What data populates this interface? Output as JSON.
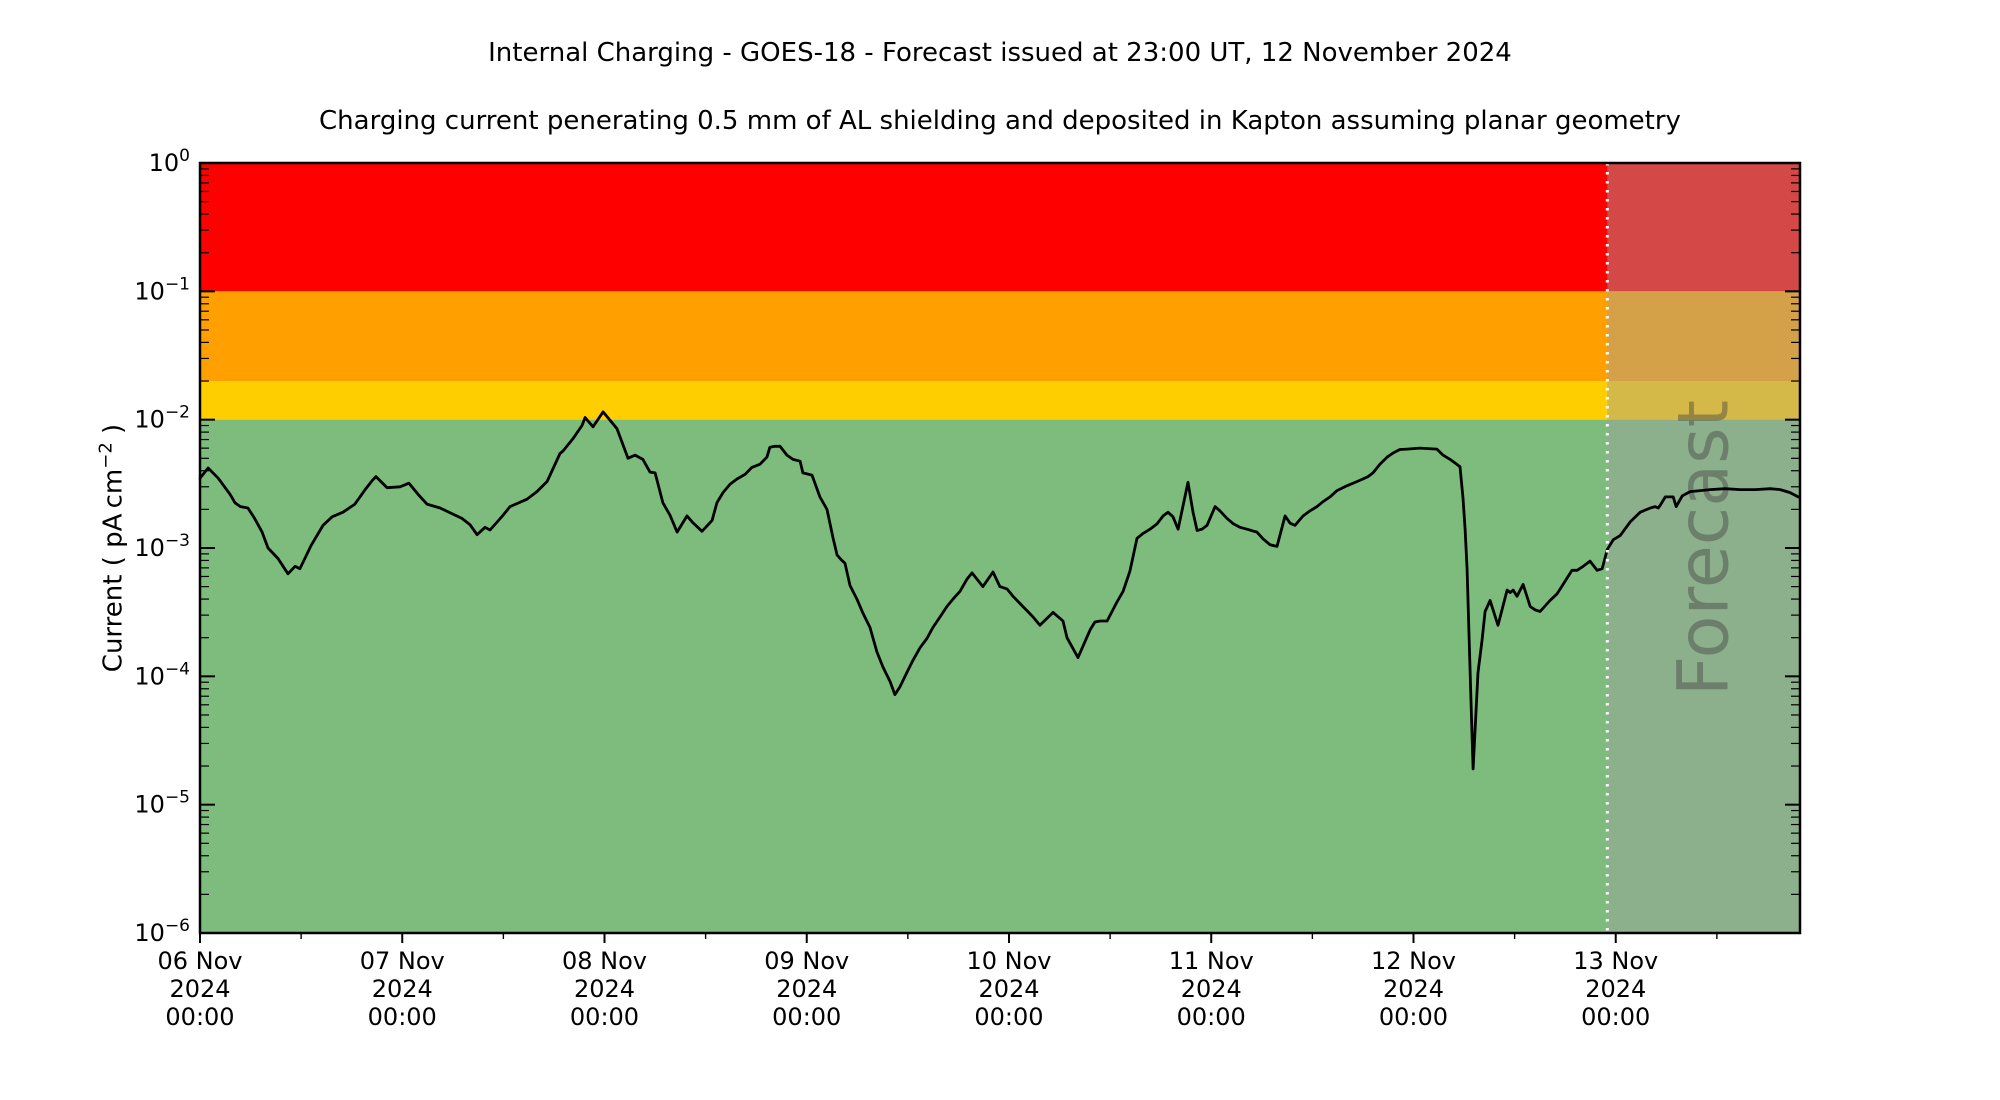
{
  "title": "Internal Charging - GOES-18 - Forecast issued at 23:00 UT, 12 November 2024",
  "subtitle": "Charging current penerating 0.5 mm of AL shielding and deposited in Kapton assuming planar geometry",
  "chart_data": {
    "type": "line",
    "y_scale": "log",
    "ylim": [
      1e-06,
      1
    ],
    "ylabel": {
      "prefix": "Current ( pA cm",
      "sup": "−2",
      "suffix": " )"
    },
    "x_range_days": [
      0,
      7.9111
    ],
    "x_minor_step_days": 0.5,
    "x_ticks": [
      {
        "t": 0,
        "line1": "06 Nov",
        "line2": "2024",
        "line3": "00:00"
      },
      {
        "t": 1,
        "line1": "07 Nov",
        "line2": "2024",
        "line3": "00:00"
      },
      {
        "t": 2,
        "line1": "08 Nov",
        "line2": "2024",
        "line3": "00:00"
      },
      {
        "t": 3,
        "line1": "09 Nov",
        "line2": "2024",
        "line3": "00:00"
      },
      {
        "t": 4,
        "line1": "10 Nov",
        "line2": "2024",
        "line3": "00:00"
      },
      {
        "t": 5,
        "line1": "11 Nov",
        "line2": "2024",
        "line3": "00:00"
      },
      {
        "t": 6,
        "line1": "12 Nov",
        "line2": "2024",
        "line3": "00:00"
      },
      {
        "t": 7,
        "line1": "13 Nov",
        "line2": "2024",
        "line3": "00:00"
      }
    ],
    "y_ticks": [
      {
        "base": "10",
        "exp": "0"
      },
      {
        "base": "10",
        "exp": "−1"
      },
      {
        "base": "10",
        "exp": "−2"
      },
      {
        "base": "10",
        "exp": "−3"
      },
      {
        "base": "10",
        "exp": "−4"
      },
      {
        "base": "10",
        "exp": "−5"
      },
      {
        "base": "10",
        "exp": "−6"
      }
    ],
    "bands": [
      {
        "name": "red",
        "from": 0.1,
        "to": 1,
        "color": "#ff0000"
      },
      {
        "name": "orange",
        "from": 0.02,
        "to": 0.1,
        "color": "#ffa000"
      },
      {
        "name": "yellow",
        "from": 0.01,
        "to": 0.02,
        "color": "#ffce00"
      },
      {
        "name": "green",
        "from": 1e-06,
        "to": 0.01,
        "color": "#7dbc7d"
      }
    ],
    "forecast": {
      "start_days": 6.9583,
      "label": "Forecast",
      "overlay_color": "#a0a0a0",
      "overlay_alpha": 0.45,
      "divider_color": "#ffffff",
      "label_color": "#3f3f3f",
      "label_alpha": 0.42
    },
    "series": [
      {
        "name": "charging-current",
        "color": "#000000",
        "points": [
          [
            0,
            0.0035
          ],
          [
            0.04,
            0.0042
          ],
          [
            0.09,
            0.0035
          ],
          [
            0.15,
            0.0026
          ],
          [
            0.173,
            0.00225
          ],
          [
            0.2,
            0.0021
          ],
          [
            0.237,
            0.00205
          ],
          [
            0.27,
            0.0017
          ],
          [
            0.307,
            0.00133
          ],
          [
            0.336,
            0.001
          ],
          [
            0.385,
            0.00083
          ],
          [
            0.435,
            0.00063
          ],
          [
            0.47,
            0.00072
          ],
          [
            0.494,
            0.00069
          ],
          [
            0.55,
            0.00105
          ],
          [
            0.608,
            0.0015
          ],
          [
            0.653,
            0.00175
          ],
          [
            0.707,
            0.0019
          ],
          [
            0.766,
            0.0022
          ],
          [
            0.82,
            0.0029
          ],
          [
            0.855,
            0.0034
          ],
          [
            0.87,
            0.0036
          ],
          [
            0.925,
            0.00295
          ],
          [
            0.989,
            0.003
          ],
          [
            1.033,
            0.0032
          ],
          [
            1.08,
            0.0026
          ],
          [
            1.122,
            0.0022
          ],
          [
            1.187,
            0.00205
          ],
          [
            1.295,
            0.0017
          ],
          [
            1.335,
            0.00152
          ],
          [
            1.37,
            0.00127
          ],
          [
            1.409,
            0.00145
          ],
          [
            1.434,
            0.00138
          ],
          [
            1.493,
            0.00176
          ],
          [
            1.533,
            0.0021
          ],
          [
            1.617,
            0.0024
          ],
          [
            1.666,
            0.00275
          ],
          [
            1.716,
            0.0033
          ],
          [
            1.78,
            0.00545
          ],
          [
            1.795,
            0.0057
          ],
          [
            1.844,
            0.0071
          ],
          [
            1.889,
            0.009
          ],
          [
            1.904,
            0.0104
          ],
          [
            1.943,
            0.0088
          ],
          [
            1.993,
            0.0115
          ],
          [
            2.062,
            0.0085
          ],
          [
            2.116,
            0.005
          ],
          [
            2.151,
            0.0053
          ],
          [
            2.19,
            0.0049
          ],
          [
            2.225,
            0.0039
          ],
          [
            2.25,
            0.00385
          ],
          [
            2.289,
            0.00225
          ],
          [
            2.324,
            0.0018
          ],
          [
            2.359,
            0.00133
          ],
          [
            2.408,
            0.00178
          ],
          [
            2.438,
            0.00157
          ],
          [
            2.482,
            0.00135
          ],
          [
            2.532,
            0.00164
          ],
          [
            2.556,
            0.00225
          ],
          [
            2.586,
            0.0027
          ],
          [
            2.621,
            0.00315
          ],
          [
            2.655,
            0.00345
          ],
          [
            2.695,
            0.00375
          ],
          [
            2.729,
            0.00425
          ],
          [
            2.769,
            0.0045
          ],
          [
            2.803,
            0.0051
          ],
          [
            2.818,
            0.0061
          ],
          [
            2.843,
            0.0062
          ],
          [
            2.868,
            0.0062
          ],
          [
            2.902,
            0.0053
          ],
          [
            2.932,
            0.0049
          ],
          [
            2.967,
            0.00475
          ],
          [
            2.981,
            0.00385
          ],
          [
            3.026,
            0.0037
          ],
          [
            3.065,
            0.0025
          ],
          [
            3.1,
            0.002
          ],
          [
            3.13,
            0.0012
          ],
          [
            3.15,
            0.00088
          ],
          [
            3.174,
            0.0008
          ],
          [
            3.189,
            0.00076
          ],
          [
            3.214,
            0.00051
          ],
          [
            3.248,
            0.0004
          ],
          [
            3.278,
            0.00031
          ],
          [
            3.313,
            0.00024
          ],
          [
            3.347,
            0.000155
          ],
          [
            3.377,
            0.000118
          ],
          [
            3.412,
            9.1e-05
          ],
          [
            3.436,
            7.2e-05
          ],
          [
            3.461,
            8.3e-05
          ],
          [
            3.496,
            0.000108
          ],
          [
            3.525,
            0.000133
          ],
          [
            3.56,
            0.000167
          ],
          [
            3.594,
            0.000197
          ],
          [
            3.624,
            0.00024
          ],
          [
            3.659,
            0.00029
          ],
          [
            3.693,
            0.00035
          ],
          [
            3.723,
            0.0004
          ],
          [
            3.758,
            0.00046
          ],
          [
            3.792,
            0.00057
          ],
          [
            3.817,
            0.00064
          ],
          [
            3.871,
            0.0005
          ],
          [
            3.921,
            0.00065
          ],
          [
            3.955,
            0.0005
          ],
          [
            3.99,
            0.00048
          ],
          [
            4.02,
            0.00042
          ],
          [
            4.069,
            0.00035
          ],
          [
            4.119,
            0.00029
          ],
          [
            4.153,
            0.00025
          ],
          [
            4.218,
            0.000315
          ],
          [
            4.267,
            0.00027
          ],
          [
            4.287,
            0.0002
          ],
          [
            4.341,
            0.00014
          ],
          [
            4.401,
            0.00023
          ],
          [
            4.425,
            0.000265
          ],
          [
            4.45,
            0.00027
          ],
          [
            4.485,
            0.00027
          ],
          [
            4.534,
            0.00038
          ],
          [
            4.564,
            0.00046
          ],
          [
            4.598,
            0.00066
          ],
          [
            4.633,
            0.00119
          ],
          [
            4.663,
            0.0013
          ],
          [
            4.697,
            0.0014
          ],
          [
            4.732,
            0.00154
          ],
          [
            4.762,
            0.00178
          ],
          [
            4.786,
            0.0019
          ],
          [
            4.811,
            0.00175
          ],
          [
            4.836,
            0.0014
          ],
          [
            4.885,
            0.00325
          ],
          [
            4.91,
            0.0019
          ],
          [
            4.93,
            0.00137
          ],
          [
            4.954,
            0.0014
          ],
          [
            4.979,
            0.0015
          ],
          [
            5.019,
            0.0021
          ],
          [
            5.043,
            0.00195
          ],
          [
            5.078,
            0.0017
          ],
          [
            5.108,
            0.00155
          ],
          [
            5.142,
            0.00145
          ],
          [
            5.177,
            0.0014
          ],
          [
            5.226,
            0.00133
          ],
          [
            5.256,
            0.00118
          ],
          [
            5.291,
            0.00106
          ],
          [
            5.325,
            0.00103
          ],
          [
            5.365,
            0.00178
          ],
          [
            5.39,
            0.00156
          ],
          [
            5.414,
            0.0015
          ],
          [
            5.454,
            0.00178
          ],
          [
            5.489,
            0.00195
          ],
          [
            5.523,
            0.0021
          ],
          [
            5.553,
            0.0023
          ],
          [
            5.587,
            0.0025
          ],
          [
            5.622,
            0.0028
          ],
          [
            5.671,
            0.00305
          ],
          [
            5.721,
            0.0033
          ],
          [
            5.75,
            0.00345
          ],
          [
            5.775,
            0.0036
          ],
          [
            5.8,
            0.00385
          ],
          [
            5.834,
            0.0045
          ],
          [
            5.869,
            0.0051
          ],
          [
            5.899,
            0.0055
          ],
          [
            5.933,
            0.00585
          ],
          [
            5.968,
            0.0059
          ],
          [
            6.032,
            0.006
          ],
          [
            6.116,
            0.0059
          ],
          [
            6.146,
            0.0053
          ],
          [
            6.181,
            0.0049
          ],
          [
            6.205,
            0.0046
          ],
          [
            6.23,
            0.0043
          ],
          [
            6.245,
            0.00245
          ],
          [
            6.255,
            0.0014
          ],
          [
            6.265,
            0.00068
          ],
          [
            6.275,
            0.0002
          ],
          [
            6.285,
            6e-05
          ],
          [
            6.295,
            1.9e-05
          ],
          [
            6.319,
            0.000107
          ],
          [
            6.339,
            0.00019
          ],
          [
            6.354,
            0.00032
          ],
          [
            6.379,
            0.00039
          ],
          [
            6.418,
            0.00025
          ],
          [
            6.463,
            0.00047
          ],
          [
            6.478,
            0.00045
          ],
          [
            6.493,
            0.00047
          ],
          [
            6.512,
            0.00042
          ],
          [
            6.542,
            0.00052
          ],
          [
            6.577,
            0.00035
          ],
          [
            6.601,
            0.00033
          ],
          [
            6.626,
            0.00032
          ],
          [
            6.675,
            0.00039
          ],
          [
            6.71,
            0.00044
          ],
          [
            6.74,
            0.00052
          ],
          [
            6.784,
            0.00067
          ],
          [
            6.809,
            0.00067
          ],
          [
            6.839,
            0.00072
          ],
          [
            6.873,
            0.00079
          ],
          [
            6.908,
            0.00067
          ],
          [
            6.933,
            0.00069
          ],
          [
            6.958,
            0.00097
          ],
          [
            6.988,
            0.00116
          ],
          [
            7.022,
            0.00125
          ],
          [
            7.072,
            0.0016
          ],
          [
            7.121,
            0.0019
          ],
          [
            7.171,
            0.00205
          ],
          [
            7.195,
            0.0021
          ],
          [
            7.21,
            0.00205
          ],
          [
            7.22,
            0.00215
          ],
          [
            7.245,
            0.0025
          ],
          [
            7.284,
            0.0025
          ],
          [
            7.299,
            0.0021
          ],
          [
            7.329,
            0.00255
          ],
          [
            7.368,
            0.00275
          ],
          [
            7.418,
            0.0028
          ],
          [
            7.467,
            0.00285
          ],
          [
            7.541,
            0.0029
          ],
          [
            7.615,
            0.00285
          ],
          [
            7.69,
            0.00285
          ],
          [
            7.764,
            0.0029
          ],
          [
            7.813,
            0.00285
          ],
          [
            7.862,
            0.0027
          ],
          [
            7.902,
            0.0025
          ]
        ]
      }
    ]
  }
}
